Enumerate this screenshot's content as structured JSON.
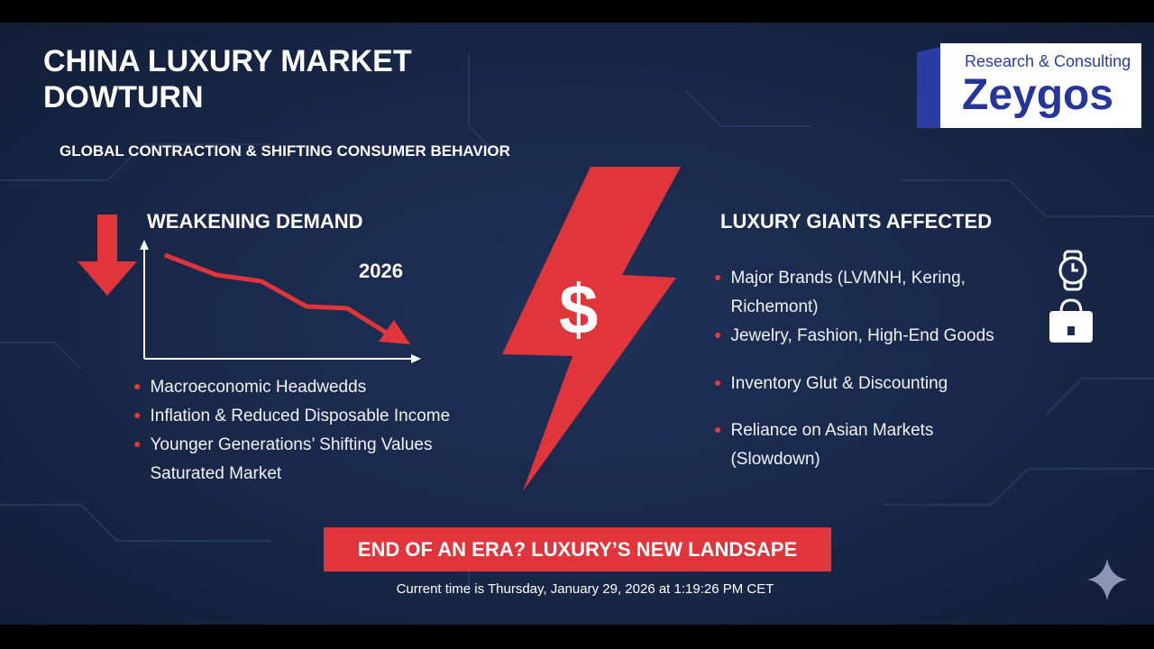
{
  "header": {
    "title_lines": [
      "CHINA LUXURY MARKET",
      "DOWTURN"
    ],
    "subtitle": "GLOBAL CONTRACTION & SHIFTING CONSUMER BEHAVIOR"
  },
  "logo": {
    "tagline": "Research & Consulting",
    "name": "Zeygos"
  },
  "left": {
    "heading": "WEAKENING DEMAND",
    "year": "2026",
    "items": [
      [
        "Macroeconomic Headwedds"
      ],
      [
        "Inflation & Reduced Disposable Income"
      ],
      [
        "Younger Generations’ Shifting Values",
        "Saturated Market"
      ]
    ]
  },
  "center": {
    "symbol": "$"
  },
  "right": {
    "heading": "LUXURY GIANTS AFFECTED",
    "items": [
      [
        "Major Brands (LVMNH, Kering,",
        "Richemont)"
      ],
      [
        "Jewelry, Fashion, High-End Goods"
      ],
      [
        "Inventory Glut & Discounting"
      ],
      [
        "Reliance on Asian Markets",
        "(Slowdown)"
      ]
    ]
  },
  "banner": "END OF AN ERA? LUXURY’S NEW LANDSAPE",
  "footer": "Current time is Thursday, January 29, 2026 at 1:19:26 PM CET"
}
